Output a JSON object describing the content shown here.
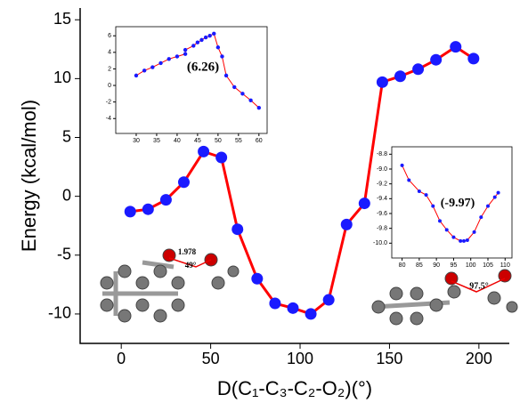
{
  "chart_data": [
    {
      "type": "line",
      "x_label": "D(C₁-C₃-C₂-O₂)(°)",
      "y_label": "Energy (kcal/mol)",
      "x": [
        5,
        15,
        25,
        35,
        46,
        56,
        65,
        76,
        86,
        96,
        106,
        116,
        126,
        136,
        146,
        156,
        166,
        176,
        187,
        197
      ],
      "values": [
        -1.3,
        -1.1,
        -0.3,
        1.2,
        3.8,
        3.3,
        -2.8,
        -7.0,
        -9.1,
        -9.5,
        -10.0,
        -8.8,
        -2.4,
        -0.6,
        9.7,
        10.2,
        10.8,
        11.6,
        12.7,
        11.7
      ],
      "color": "#ff0000",
      "marker_color": "#1a1aff",
      "xlim": [
        -23,
        217
      ],
      "ylim": [
        -12.5,
        16
      ],
      "xticks": [
        0,
        50,
        100,
        150,
        200
      ],
      "yticks": [
        -10,
        -5,
        0,
        5,
        10,
        15
      ],
      "annotations": [
        "1.978",
        "49°",
        "97.5°"
      ]
    },
    {
      "type": "line",
      "annotation": "(6.26)",
      "x": [
        30,
        32,
        34,
        36,
        38,
        40,
        42,
        42,
        44,
        45,
        46,
        47,
        48,
        49,
        50,
        51,
        52,
        54,
        56,
        58,
        60
      ],
      "values": [
        1.2,
        1.8,
        2.2,
        2.7,
        3.2,
        3.5,
        3.8,
        4.3,
        4.8,
        5.2,
        5.5,
        5.8,
        6.0,
        6.26,
        4.6,
        3.5,
        1.2,
        -0.2,
        -1.0,
        -1.8,
        -2.7
      ],
      "color": "#ff0000",
      "marker_color": "#1a1aff",
      "xlim": [
        25,
        62
      ],
      "ylim": [
        -5.8,
        7.1
      ],
      "xticks": [
        30,
        35,
        40,
        45,
        50,
        55,
        60
      ],
      "yticks": [
        -4,
        -2,
        0,
        2,
        4,
        6
      ]
    },
    {
      "type": "line",
      "annotation": "(-9.97)",
      "x": [
        80,
        82,
        85,
        87,
        89,
        91,
        93,
        95,
        97,
        98,
        99,
        101,
        103,
        105,
        107,
        108
      ],
      "values": [
        -8.95,
        -9.15,
        -9.3,
        -9.35,
        -9.5,
        -9.7,
        -9.82,
        -9.92,
        -9.97,
        -9.97,
        -9.96,
        -9.85,
        -9.65,
        -9.5,
        -9.38,
        -9.32
      ],
      "color": "#ff0000",
      "marker_color": "#1a1aff",
      "xlim": [
        77,
        112
      ],
      "ylim": [
        -10.2,
        -8.7
      ],
      "xticks": [
        80,
        85,
        90,
        95,
        100,
        105,
        110
      ],
      "yticks": [
        {
          "value": -10.0,
          "label": "-10.0"
        },
        -9.8,
        -9.6,
        -9.4,
        -9.2,
        {
          "value": -9.0,
          "label": "-9.0"
        },
        -8.8
      ]
    }
  ]
}
